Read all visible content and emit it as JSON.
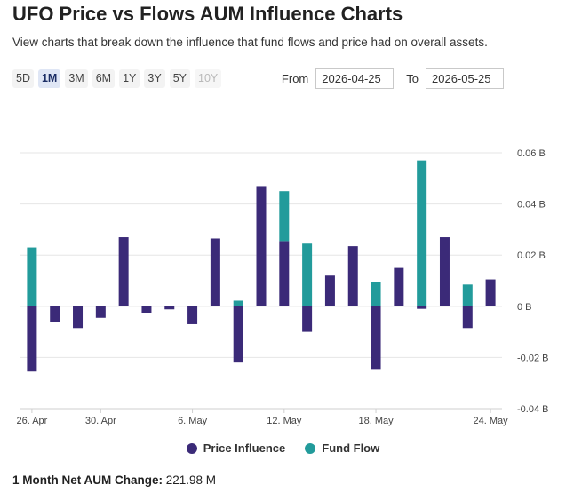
{
  "header": {
    "title": "UFO Price vs Flows AUM Influence Charts",
    "subtitle": "View charts that break down the influence that fund flows and price had on overall assets."
  },
  "ranges": [
    {
      "label": "5D",
      "state": "normal"
    },
    {
      "label": "1M",
      "state": "active"
    },
    {
      "label": "3M",
      "state": "normal"
    },
    {
      "label": "6M",
      "state": "normal"
    },
    {
      "label": "1Y",
      "state": "normal"
    },
    {
      "label": "3Y",
      "state": "normal"
    },
    {
      "label": "5Y",
      "state": "normal"
    },
    {
      "label": "10Y",
      "state": "disabled"
    }
  ],
  "dates": {
    "from_label": "From",
    "from_value": "2026-04-25",
    "to_label": "To",
    "to_value": "2026-05-25"
  },
  "footer": {
    "label": "1 Month Net AUM Change:",
    "value": "221.98 M"
  },
  "colors": {
    "price": "#3b2a78",
    "flow": "#229b9b"
  },
  "chart_data": {
    "type": "bar",
    "ylim": [
      -0.04,
      0.06
    ],
    "yticks": [
      0.06,
      0.04,
      0.02,
      0,
      -0.02,
      -0.04
    ],
    "ytick_labels": [
      "0.06 B",
      "0.04 B",
      "0.02 B",
      "0 B",
      "-0.02 B",
      "-0.04 B"
    ],
    "xtick_labels": [
      "26. Apr",
      "30. Apr",
      "6. May",
      "12. May",
      "18. May",
      "24. May"
    ],
    "xtick_index": [
      0,
      3,
      7,
      11,
      15,
      20
    ],
    "legend_position": "bottom-center",
    "series": [
      {
        "name": "Price Influence",
        "values": [
          -0.0255,
          -0.006,
          -0.0085,
          -0.0045,
          0.027,
          -0.0025,
          -0.0012,
          -0.007,
          0.0265,
          -0.022,
          0.047,
          0.0255,
          -0.01,
          0.012,
          0.0235,
          -0.0245,
          0.015,
          -0.001,
          0.027,
          -0.0085,
          0.0105
        ]
      },
      {
        "name": "Fund Flow",
        "values": [
          0.023,
          0,
          0,
          0,
          0,
          0,
          0,
          0,
          0,
          0.0022,
          0,
          0.0195,
          0.0245,
          0,
          0,
          0.0095,
          0,
          0.057,
          0,
          0.0085,
          0
        ]
      }
    ]
  }
}
